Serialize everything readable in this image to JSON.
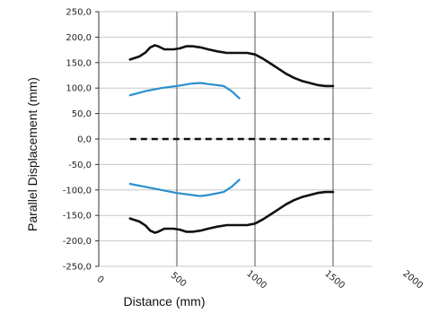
{
  "chart_data": {
    "type": "line",
    "xlabel": "Distance (mm)",
    "ylabel": "Parallel Displacement (mm)",
    "xlim": [
      0,
      2000
    ],
    "ylim": [
      -250,
      250
    ],
    "x_ticks": [
      0,
      500,
      1000,
      1500,
      2000
    ],
    "x_tick_labels": [
      "0",
      "500",
      "1000",
      "1500",
      "2000"
    ],
    "y_ticks": [
      250,
      200,
      150,
      100,
      50,
      0,
      -50,
      -100,
      -150,
      -200,
      -250
    ],
    "y_tick_labels": [
      "250,0",
      "200,0",
      "150,0",
      "100,0",
      "50,0",
      "0,0",
      "-50,0",
      "-100,0",
      "-150,0",
      "-200,0",
      "-250,0"
    ],
    "grid": true,
    "plot_area_xmax": 1750,
    "series": [
      {
        "color": "#111111",
        "style": "solid",
        "x": [
          200,
          260,
          300,
          330,
          360,
          380,
          420,
          480,
          520,
          560,
          600,
          650,
          700,
          760,
          820,
          900,
          950,
          1000,
          1050,
          1100,
          1150,
          1200,
          1250,
          1300,
          1350,
          1400,
          1450,
          1500
        ],
        "y": [
          156,
          162,
          170,
          180,
          184,
          182,
          176,
          176,
          178,
          182,
          182,
          180,
          176,
          172,
          169,
          169,
          169,
          166,
          158,
          148,
          138,
          128,
          120,
          114,
          110,
          106,
          104,
          104
        ]
      },
      {
        "color": "#2b8fce",
        "style": "solid",
        "x": [
          200,
          300,
          400,
          500,
          600,
          650,
          700,
          800,
          850,
          900
        ],
        "y": [
          86,
          94,
          100,
          104,
          109,
          110,
          108,
          104,
          94,
          80
        ]
      },
      {
        "color": "#111111",
        "style": "dashed",
        "x": [
          200,
          1500
        ],
        "y": [
          0,
          0
        ]
      },
      {
        "color": "#2b8fce",
        "style": "solid",
        "x": [
          200,
          300,
          400,
          500,
          600,
          650,
          700,
          800,
          850,
          900
        ],
        "y": [
          -88,
          -94,
          -100,
          -106,
          -110,
          -112,
          -110,
          -104,
          -94,
          -80
        ]
      },
      {
        "color": "#111111",
        "style": "solid",
        "x": [
          200,
          260,
          300,
          330,
          360,
          380,
          420,
          480,
          520,
          560,
          600,
          650,
          700,
          760,
          820,
          900,
          950,
          1000,
          1050,
          1100,
          1150,
          1200,
          1250,
          1300,
          1350,
          1400,
          1450,
          1500
        ],
        "y": [
          -156,
          -162,
          -170,
          -180,
          -184,
          -182,
          -176,
          -176,
          -178,
          -182,
          -182,
          -180,
          -176,
          -172,
          -169,
          -169,
          -169,
          -166,
          -158,
          -148,
          -138,
          -128,
          -120,
          -114,
          -110,
          -106,
          -104,
          -104
        ]
      }
    ]
  }
}
